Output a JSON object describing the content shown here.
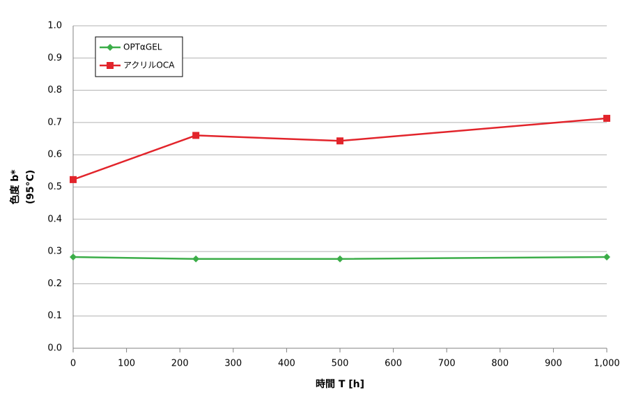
{
  "chart_data": {
    "type": "line",
    "ylabel": [
      "色度 b*",
      "(95°C)"
    ],
    "xlabel": "時間 T [h]",
    "x": [
      0,
      230,
      500,
      1000
    ],
    "series": [
      {
        "name": "OPTαGEL",
        "color": "#3bad48",
        "marker": "diamond",
        "values": [
          0.283,
          0.277,
          0.277,
          0.283
        ]
      },
      {
        "name": "アクリルOCA",
        "color": "#e2242b",
        "marker": "square",
        "values": [
          0.523,
          0.66,
          0.643,
          0.713
        ]
      }
    ],
    "xlim": [
      0,
      1000
    ],
    "xticks": [
      0,
      100,
      200,
      300,
      400,
      500,
      600,
      700,
      800,
      900,
      {
        "value": 1000,
        "label": "1,000"
      }
    ],
    "ylim": [
      0,
      1
    ],
    "yticks": [
      {
        "value": 0,
        "label": "0.0"
      },
      0.1,
      0.2,
      0.3,
      0.4,
      0.5,
      0.6,
      0.7,
      0.8,
      0.9,
      {
        "value": 1,
        "label": "1.0"
      }
    ],
    "grid": true,
    "legend": "upper left"
  }
}
